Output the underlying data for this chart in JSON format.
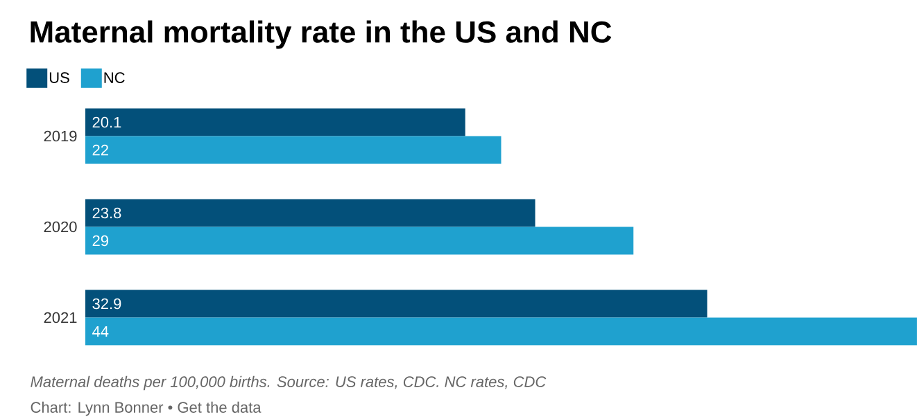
{
  "chart_data": {
    "type": "bar",
    "orientation": "horizontal",
    "title": "Maternal mortality rate in the US and NC",
    "categories": [
      "2019",
      "2020",
      "2021"
    ],
    "series": [
      {
        "name": "US",
        "color": "#03507a",
        "values": [
          20.1,
          23.8,
          32.9
        ]
      },
      {
        "name": "NC",
        "color": "#1fa1cf",
        "values": [
          22,
          29,
          44
        ]
      }
    ],
    "data_labels": true,
    "legend": "top left",
    "annotations": [
      "Maternal deaths per 100,000 births. Source: US rates, CDC. NC rates, CDC",
      "Chart: Lynn Bonner • Get the data"
    ]
  }
}
